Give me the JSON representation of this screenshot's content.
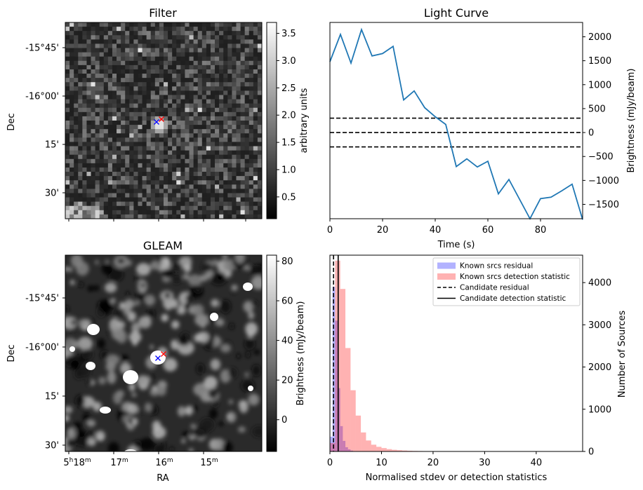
{
  "chart_data": [
    {
      "type": "heatmap",
      "title": "Filter",
      "xlabel": "",
      "ylabel": "Dec",
      "dec_tick_labels": [
        "-15°45'",
        "-16°00'",
        "15'",
        "30'"
      ],
      "colorbar": {
        "label": "arbitrary units",
        "range": [
          0.1,
          3.7
        ],
        "ticks": [
          0.5,
          1.0,
          1.5,
          2.0,
          2.5,
          3.0,
          3.5
        ],
        "tick_labels": [
          "0.5",
          "1.0",
          "1.5",
          "2.0",
          "2.5",
          "3.0",
          "3.5"
        ]
      },
      "markers": [
        {
          "symbol": "x",
          "color": "#0000ff"
        },
        {
          "symbol": "x",
          "color": "#ff0000"
        }
      ]
    },
    {
      "type": "line",
      "title": "Light Curve",
      "xlabel": "Time (s)",
      "ylabel": "Brightness (mJy/beam)",
      "xlim": [
        0,
        96
      ],
      "ylim": [
        -1800,
        2300
      ],
      "x_ticks": [
        0,
        20,
        40,
        60,
        80
      ],
      "y_ticks": [
        -1500,
        -1000,
        -500,
        0,
        500,
        1000,
        1500,
        2000
      ],
      "series": [
        {
          "color": "#1f77b4",
          "x": [
            0,
            4,
            8,
            12,
            16,
            20,
            24,
            28,
            32,
            36,
            40,
            44,
            48,
            52,
            56,
            60,
            64,
            68,
            72,
            76,
            80,
            84,
            88,
            92,
            96
          ],
          "y": [
            1480,
            2050,
            1450,
            2150,
            1600,
            1650,
            1800,
            680,
            870,
            520,
            330,
            170,
            -710,
            -550,
            -720,
            -600,
            -1280,
            -980,
            -1390,
            -1800,
            -1380,
            -1350,
            -1220,
            -1080,
            -1820
          ]
        }
      ],
      "hlines": [
        {
          "y": 300,
          "style": "dashed",
          "color": "#000000"
        },
        {
          "y": 0,
          "style": "dashed",
          "color": "#000000"
        },
        {
          "y": -300,
          "style": "dashed",
          "color": "#000000"
        }
      ]
    },
    {
      "type": "heatmap",
      "title": "GLEAM",
      "xlabel": "RA",
      "ylabel": "Dec",
      "dec_tick_labels": [
        "-15°45'",
        "-16°00'",
        "15'",
        "30'"
      ],
      "ra_tick_labels": [
        {
          "main": "5",
          "sup1": "h",
          "main2": "18",
          "sup2": "m"
        },
        {
          "main": "17",
          "sup": "m"
        },
        {
          "main": "16",
          "sup": "m"
        },
        {
          "main": "15",
          "sup": "m"
        }
      ],
      "colorbar": {
        "label": "Brightness (mJy/beam)",
        "range": [
          -16,
          83
        ],
        "ticks": [
          0,
          20,
          40,
          60,
          80
        ],
        "tick_labels": [
          "0",
          "20",
          "40",
          "60",
          "80"
        ]
      },
      "markers": [
        {
          "symbol": "x",
          "color": "#0000ff"
        },
        {
          "symbol": "x",
          "color": "#ff0000"
        }
      ]
    },
    {
      "type": "bar",
      "xlabel": "Normalised stdev or detection statistics",
      "ylabel": "Number of Sources",
      "xlim": [
        0,
        49
      ],
      "ylim": [
        0,
        4650
      ],
      "x_ticks": [
        0,
        10,
        20,
        30,
        40
      ],
      "y_ticks": [
        0,
        1000,
        2000,
        3000,
        4000
      ],
      "bin_width": 1,
      "series": [
        {
          "name": "Known srcs residual",
          "color": "#0000ff",
          "alpha": 0.3,
          "bin_start": 0,
          "bin_width": 0.5,
          "values": [
            350,
            3900,
            3100,
            1500,
            600,
            250,
            100,
            50,
            20,
            5
          ]
        },
        {
          "name": "Known srcs detection statistic",
          "color": "#ff0000",
          "alpha": 0.3,
          "bin_start": 0,
          "bin_width": 1,
          "values": [
            200,
            4520,
            3850,
            2450,
            1450,
            850,
            450,
            260,
            160,
            110,
            80,
            55,
            40,
            30,
            22,
            16,
            12,
            10,
            8,
            6,
            5,
            4,
            4,
            3,
            3,
            2,
            2,
            2,
            1,
            1,
            1,
            1,
            1,
            1,
            1,
            1,
            1,
            1,
            1,
            1,
            1,
            1,
            1,
            1,
            1,
            1,
            1,
            1,
            1
          ]
        }
      ],
      "vlines": [
        {
          "name": "Candidate residual",
          "x": 0.7,
          "style": "dashed",
          "color": "#000000"
        },
        {
          "name": "Candidate detection statistic",
          "x": 1.6,
          "style": "solid",
          "color": "#000000"
        }
      ],
      "legend_placement": "top-right"
    }
  ]
}
